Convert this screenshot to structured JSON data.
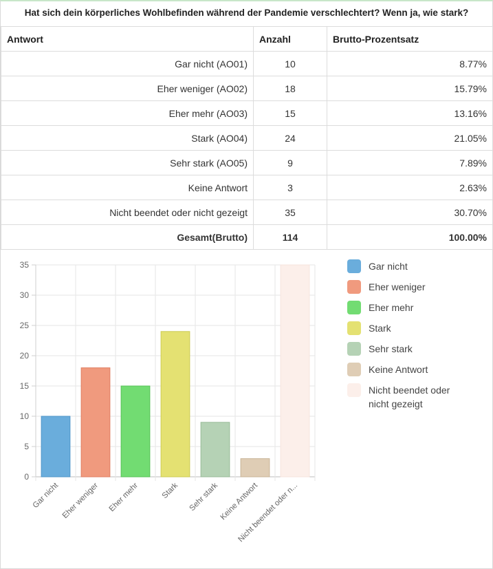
{
  "question": "Hat sich dein körperliches Wohlbefinden während der Pandemie verschlechtert? Wenn ja, wie stark?",
  "table": {
    "headers": [
      "Antwort",
      "Anzahl",
      "Brutto-Prozentsatz"
    ],
    "rows": [
      {
        "answer": "Gar nicht (AO01)",
        "count": "10",
        "percent": "8.77%"
      },
      {
        "answer": "Eher weniger (AO02)",
        "count": "18",
        "percent": "15.79%"
      },
      {
        "answer": "Eher mehr (AO03)",
        "count": "15",
        "percent": "13.16%"
      },
      {
        "answer": "Stark (AO04)",
        "count": "24",
        "percent": "21.05%"
      },
      {
        "answer": "Sehr stark (AO05)",
        "count": "9",
        "percent": "7.89%"
      },
      {
        "answer": "Keine Antwort",
        "count": "3",
        "percent": "2.63%"
      },
      {
        "answer": "Nicht beendet oder nicht gezeigt",
        "count": "35",
        "percent": "30.70%"
      }
    ],
    "total": {
      "answer": "Gesamt(Brutto)",
      "count": "114",
      "percent": "100.00%"
    }
  },
  "chart_data": {
    "type": "bar",
    "title": "",
    "xlabel": "",
    "ylabel": "",
    "categories": [
      "Gar nicht",
      "Eher weniger",
      "Eher mehr",
      "Stark",
      "Sehr stark",
      "Keine Antwort",
      "Nicht beendet oder nicht gezeigt"
    ],
    "tick_labels": [
      "Gar nicht",
      "Eher weniger",
      "Eher mehr",
      "Stark",
      "Sehr stark",
      "Keine Antwort",
      "Nicht beendet oder n..."
    ],
    "values": [
      10,
      18,
      15,
      24,
      9,
      3,
      35
    ],
    "ylim": [
      0,
      35
    ],
    "yticks": [
      0,
      5,
      10,
      15,
      20,
      25,
      30,
      35
    ],
    "grid": true,
    "legend_position": "right",
    "colors": [
      "#6aaddc",
      "#f09a7e",
      "#72dc72",
      "#e4e172",
      "#b5d2b5",
      "#dfcdb5",
      "#fcefea"
    ],
    "edge_colors": [
      "#4f95c8",
      "#e07e62",
      "#55c255",
      "#cccb52",
      "#98bb98",
      "#c9b497",
      "#f6e3dc"
    ],
    "legend": [
      {
        "label": "Gar nicht",
        "color": "#6aaddc"
      },
      {
        "label": "Eher weniger",
        "color": "#f09a7e"
      },
      {
        "label": "Eher mehr",
        "color": "#72dc72"
      },
      {
        "label": "Stark",
        "color": "#e4e172"
      },
      {
        "label": "Sehr stark",
        "color": "#b5d2b5"
      },
      {
        "label": "Keine Antwort",
        "color": "#dfcdb5"
      },
      {
        "label": "Nicht beendet oder nicht gezeigt",
        "color": "#fcefea"
      }
    ]
  }
}
